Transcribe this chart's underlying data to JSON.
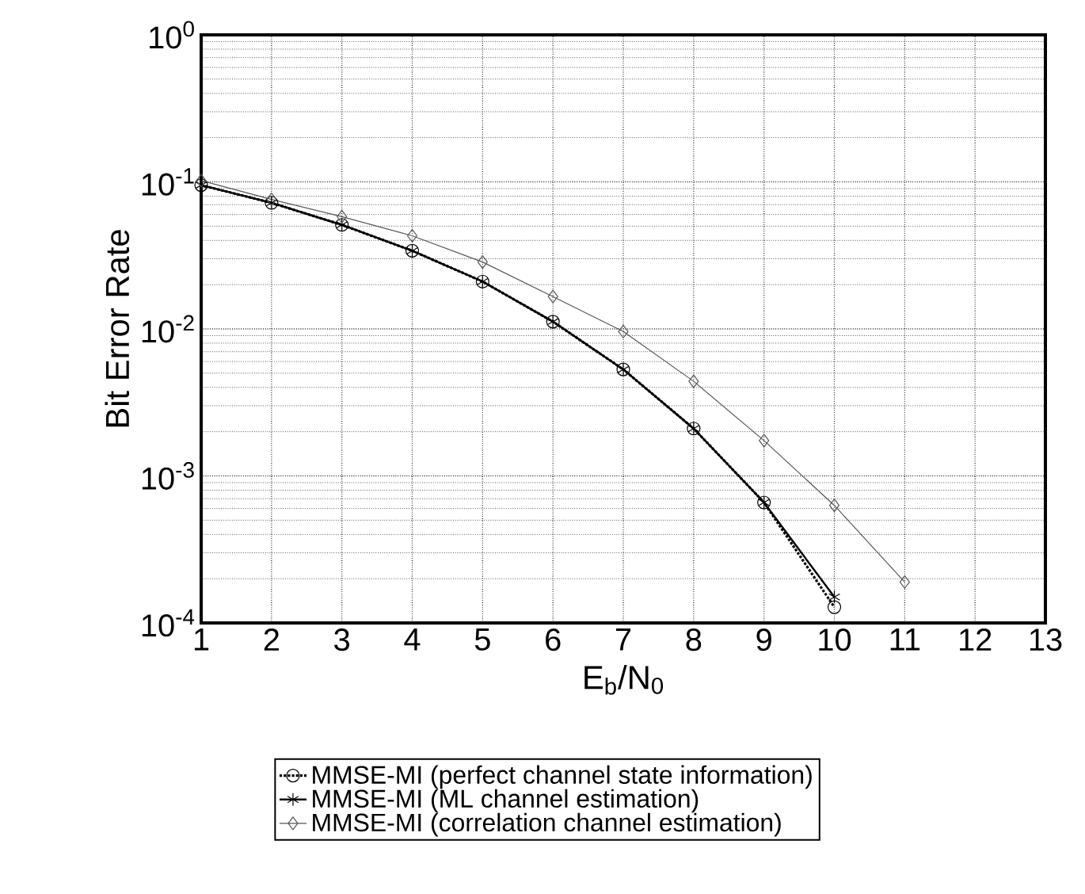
{
  "chart_data": {
    "type": "line",
    "ylabel": "Bit Error Rate",
    "xlabel": "E$_{b}$/N$_{0}$",
    "x": [
      1,
      2,
      3,
      4,
      5,
      6,
      7,
      8,
      9,
      10,
      11
    ],
    "series": [
      {
        "name": "MMSE-MI (perfect channel state information)",
        "color": "#000000",
        "marker": "circle",
        "line_style": "dotted",
        "values": [
          0.095,
          0.072,
          0.051,
          0.034,
          0.021,
          0.0112,
          0.0053,
          0.0021,
          0.00066,
          0.000128,
          null
        ]
      },
      {
        "name": "MMSE-MI (ML channel estimation)",
        "color": "#000000",
        "marker": "cross",
        "line_style": "solid",
        "values": [
          0.095,
          0.072,
          0.051,
          0.034,
          0.021,
          0.0112,
          0.0053,
          0.0021,
          0.00066,
          0.00015,
          null
        ]
      },
      {
        "name": "MMSE-MI (correlation channel estimation)",
        "color": "#555555",
        "marker": "diamond",
        "line_style": "solid",
        "values": [
          0.102,
          0.076,
          0.058,
          0.043,
          0.0285,
          0.0166,
          0.0096,
          0.0044,
          0.00174,
          0.00063,
          0.00019
        ]
      }
    ],
    "log": "y",
    "grid": true,
    "legend": "bottom",
    "xlim": [
      1,
      13
    ],
    "xticks": [
      1,
      2,
      3,
      4,
      5,
      6,
      7,
      8,
      9,
      10,
      11,
      12,
      13
    ],
    "ylim": [
      0.0001,
      1
    ],
    "yticks": [
      {
        "value": 0.0001,
        "label": "10$^{-4}$"
      },
      {
        "value": 0.001,
        "label": "10$^{-3}$"
      },
      {
        "value": 0.01,
        "label": "10$^{-2}$"
      },
      {
        "value": 0.1,
        "label": "10$^{-1}$"
      },
      {
        "value": 1,
        "label": "10$^{0}$"
      }
    ]
  }
}
